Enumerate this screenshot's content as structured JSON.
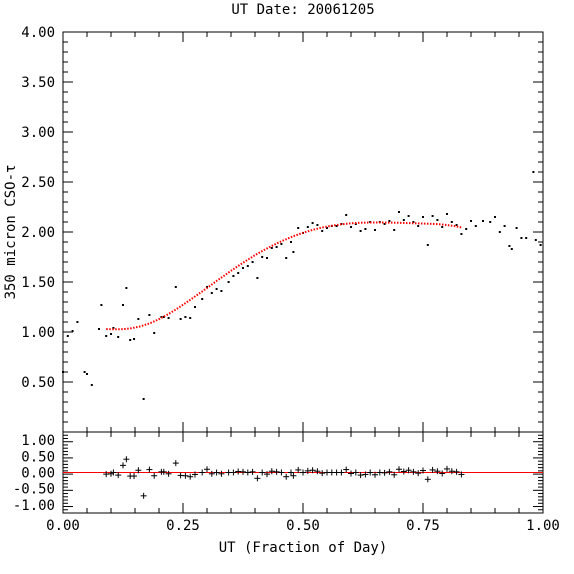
{
  "chart_data": {
    "type": "scatter",
    "title": "UT Date: 20061205",
    "xlabel": "UT (Fraction of Day)",
    "ylabel": "350 micron CSO-τ",
    "xlim": [
      0.0,
      1.0
    ],
    "xticks": [
      "0.00",
      "0.25",
      "0.50",
      "0.75",
      "1.00"
    ],
    "main_panel": {
      "ylim": [
        0.0,
        4.0
      ],
      "yticks": [
        "0.50",
        "1.00",
        "1.50",
        "2.00",
        "2.50",
        "3.00",
        "3.50",
        "4.00"
      ],
      "series": [
        {
          "kind": "points",
          "color": "#000000",
          "points": [
            [
              0.0,
              0.6
            ],
            [
              0.01,
              0.96
            ],
            [
              0.02,
              1.01
            ],
            [
              0.03,
              1.1
            ],
            [
              0.045,
              0.6
            ],
            [
              0.05,
              0.58
            ],
            [
              0.06,
              0.47
            ],
            [
              0.075,
              1.03
            ],
            [
              0.08,
              1.27
            ],
            [
              0.09,
              0.96
            ],
            [
              0.1,
              0.98
            ],
            [
              0.105,
              1.04
            ],
            [
              0.115,
              0.95
            ],
            [
              0.125,
              1.27
            ],
            [
              0.132,
              1.44
            ],
            [
              0.14,
              0.92
            ],
            [
              0.148,
              0.93
            ],
            [
              0.157,
              1.13
            ],
            [
              0.168,
              0.33
            ],
            [
              0.18,
              1.17
            ],
            [
              0.19,
              0.99
            ],
            [
              0.205,
              1.15
            ],
            [
              0.21,
              1.15
            ],
            [
              0.22,
              1.14
            ],
            [
              0.235,
              1.45
            ],
            [
              0.245,
              1.13
            ],
            [
              0.255,
              1.15
            ],
            [
              0.265,
              1.14
            ],
            [
              0.275,
              1.25
            ],
            [
              0.29,
              1.33
            ],
            [
              0.3,
              1.45
            ],
            [
              0.31,
              1.39
            ],
            [
              0.32,
              1.43
            ],
            [
              0.33,
              1.41
            ],
            [
              0.345,
              1.5
            ],
            [
              0.355,
              1.56
            ],
            [
              0.365,
              1.59
            ],
            [
              0.375,
              1.64
            ],
            [
              0.385,
              1.66
            ],
            [
              0.395,
              1.7
            ],
            [
              0.405,
              1.54
            ],
            [
              0.415,
              1.75
            ],
            [
              0.425,
              1.74
            ],
            [
              0.435,
              1.84
            ],
            [
              0.445,
              1.85
            ],
            [
              0.455,
              1.88
            ],
            [
              0.465,
              1.74
            ],
            [
              0.475,
              1.9
            ],
            [
              0.48,
              1.8
            ],
            [
              0.49,
              2.04
            ],
            [
              0.5,
              1.99
            ],
            [
              0.51,
              2.05
            ],
            [
              0.52,
              2.09
            ],
            [
              0.53,
              2.07
            ],
            [
              0.54,
              2.01
            ],
            [
              0.55,
              2.04
            ],
            [
              0.56,
              2.06
            ],
            [
              0.57,
              2.06
            ],
            [
              0.58,
              2.08
            ],
            [
              0.59,
              2.17
            ],
            [
              0.6,
              2.05
            ],
            [
              0.61,
              2.08
            ],
            [
              0.62,
              2.01
            ],
            [
              0.63,
              2.03
            ],
            [
              0.64,
              2.1
            ],
            [
              0.65,
              2.02
            ],
            [
              0.66,
              2.1
            ],
            [
              0.67,
              2.08
            ],
            [
              0.68,
              2.11
            ],
            [
              0.69,
              2.02
            ],
            [
              0.7,
              2.2
            ],
            [
              0.71,
              2.12
            ],
            [
              0.72,
              2.16
            ],
            [
              0.73,
              2.1
            ],
            [
              0.74,
              2.06
            ],
            [
              0.75,
              2.15
            ],
            [
              0.76,
              1.87
            ],
            [
              0.77,
              2.16
            ],
            [
              0.78,
              2.12
            ],
            [
              0.79,
              2.05
            ],
            [
              0.8,
              2.18
            ],
            [
              0.81,
              2.1
            ],
            [
              0.82,
              2.07
            ],
            [
              0.83,
              1.98
            ],
            [
              0.84,
              2.03
            ],
            [
              0.85,
              2.11
            ],
            [
              0.86,
              2.06
            ],
            [
              0.875,
              2.11
            ],
            [
              0.89,
              2.1
            ],
            [
              0.9,
              2.15
            ],
            [
              0.91,
              2.0
            ],
            [
              0.92,
              2.06
            ],
            [
              0.93,
              1.86
            ],
            [
              0.935,
              1.83
            ],
            [
              0.945,
              2.04
            ],
            [
              0.955,
              1.94
            ],
            [
              0.965,
              1.94
            ],
            [
              0.98,
              2.6
            ],
            [
              0.985,
              1.92
            ],
            [
              0.995,
              1.87
            ]
          ]
        },
        {
          "kind": "fit-line",
          "color": "#ff0000",
          "points": [
            [
              0.09,
              1.03
            ],
            [
              0.1,
              1.027
            ],
            [
              0.12,
              1.027
            ],
            [
              0.14,
              1.035
            ],
            [
              0.16,
              1.055
            ],
            [
              0.18,
              1.085
            ],
            [
              0.2,
              1.128
            ],
            [
              0.22,
              1.18
            ],
            [
              0.24,
              1.24
            ],
            [
              0.26,
              1.305
            ],
            [
              0.28,
              1.372
            ],
            [
              0.3,
              1.44
            ],
            [
              0.32,
              1.51
            ],
            [
              0.34,
              1.578
            ],
            [
              0.36,
              1.645
            ],
            [
              0.38,
              1.708
            ],
            [
              0.4,
              1.768
            ],
            [
              0.42,
              1.823
            ],
            [
              0.44,
              1.873
            ],
            [
              0.46,
              1.918
            ],
            [
              0.48,
              1.958
            ],
            [
              0.5,
              1.992
            ],
            [
              0.52,
              2.021
            ],
            [
              0.54,
              2.045
            ],
            [
              0.56,
              2.063
            ],
            [
              0.58,
              2.077
            ],
            [
              0.6,
              2.087
            ],
            [
              0.62,
              2.093
            ],
            [
              0.64,
              2.095
            ],
            [
              0.66,
              2.095
            ],
            [
              0.68,
              2.094
            ],
            [
              0.7,
              2.092
            ],
            [
              0.72,
              2.089
            ],
            [
              0.74,
              2.086
            ],
            [
              0.76,
              2.083
            ],
            [
              0.78,
              2.079
            ],
            [
              0.8,
              2.07
            ],
            [
              0.81,
              2.063
            ],
            [
              0.82,
              2.055
            ],
            [
              0.83,
              2.045
            ]
          ]
        }
      ]
    },
    "residual_panel": {
      "ylim": [
        -1.25,
        1.25
      ],
      "yticks": [
        "1.00",
        "0.50",
        "0.00",
        "-0.50",
        "-1.00"
      ],
      "zero_line_color": "#ff0000",
      "points": [
        [
          0.09,
          -0.05
        ],
        [
          0.1,
          -0.04
        ],
        [
          0.105,
          0.0
        ],
        [
          0.115,
          -0.08
        ],
        [
          0.125,
          0.22
        ],
        [
          0.132,
          0.41
        ],
        [
          0.14,
          -0.11
        ],
        [
          0.148,
          -0.11
        ],
        [
          0.157,
          0.07
        ],
        [
          0.168,
          -0.72
        ],
        [
          0.18,
          0.09
        ],
        [
          0.19,
          -0.1
        ],
        [
          0.205,
          0.02
        ],
        [
          0.21,
          0.02
        ],
        [
          0.22,
          -0.04
        ],
        [
          0.235,
          0.29
        ],
        [
          0.245,
          -0.09
        ],
        [
          0.255,
          -0.1
        ],
        [
          0.265,
          -0.13
        ],
        [
          0.275,
          -0.06
        ],
        [
          0.29,
          0.0
        ],
        [
          0.3,
          0.1
        ],
        [
          0.31,
          -0.04
        ],
        [
          0.32,
          0.0
        ],
        [
          0.33,
          -0.04
        ],
        [
          0.345,
          0.0
        ],
        [
          0.355,
          0.0
        ],
        [
          0.365,
          0.03
        ],
        [
          0.375,
          0.02
        ],
        [
          0.385,
          0.0
        ],
        [
          0.395,
          0.02
        ],
        [
          0.405,
          -0.18
        ],
        [
          0.415,
          0.0
        ],
        [
          0.425,
          -0.05
        ],
        [
          0.435,
          0.04
        ],
        [
          0.445,
          0.02
        ],
        [
          0.455,
          0.0
        ],
        [
          0.465,
          -0.13
        ],
        [
          0.475,
          0.0
        ],
        [
          0.48,
          -0.1
        ],
        [
          0.49,
          0.08
        ],
        [
          0.5,
          0.0
        ],
        [
          0.51,
          0.05
        ],
        [
          0.52,
          0.07
        ],
        [
          0.53,
          0.04
        ],
        [
          0.54,
          -0.02
        ],
        [
          0.55,
          0.0
        ],
        [
          0.56,
          0.0
        ],
        [
          0.57,
          0.0
        ],
        [
          0.58,
          0.0
        ],
        [
          0.59,
          0.09
        ],
        [
          0.6,
          -0.03
        ],
        [
          0.61,
          0.0
        ],
        [
          0.62,
          -0.08
        ],
        [
          0.63,
          -0.06
        ],
        [
          0.64,
          0.0
        ],
        [
          0.65,
          -0.07
        ],
        [
          0.66,
          0.0
        ],
        [
          0.67,
          -0.01
        ],
        [
          0.68,
          0.02
        ],
        [
          0.69,
          -0.07
        ],
        [
          0.7,
          0.1
        ],
        [
          0.71,
          0.03
        ],
        [
          0.72,
          0.07
        ],
        [
          0.73,
          0.02
        ],
        [
          0.74,
          -0.02
        ],
        [
          0.75,
          0.06
        ],
        [
          0.76,
          -0.21
        ],
        [
          0.77,
          0.08
        ],
        [
          0.78,
          0.04
        ],
        [
          0.79,
          -0.03
        ],
        [
          0.8,
          0.11
        ],
        [
          0.81,
          0.04
        ],
        [
          0.82,
          0.02
        ],
        [
          0.83,
          -0.06
        ]
      ]
    }
  }
}
